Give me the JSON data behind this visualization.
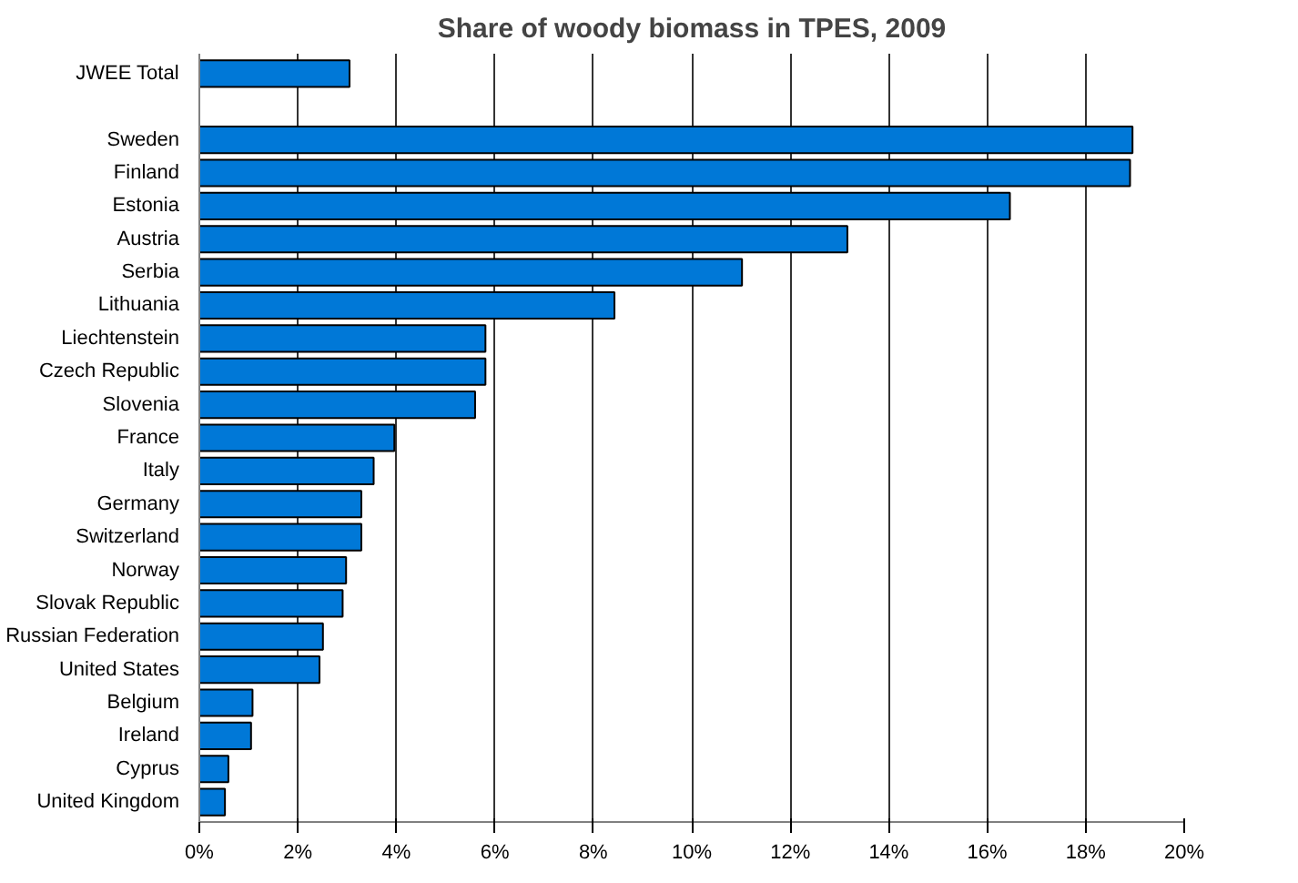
{
  "chart_data": {
    "type": "bar",
    "orientation": "horizontal",
    "title": "Share of woody biomass in TPES, 2009",
    "categories": [
      "JWEE Total",
      null,
      "Sweden",
      "Finland",
      "Estonia",
      "Austria",
      "Serbia",
      "Lithuania",
      "Liechtenstein",
      "Czech Republic",
      "Slovenia",
      "France",
      "Italy",
      "Germany",
      "Switzerland",
      "Norway",
      "Slovak Republic",
      "Russian Federation",
      "United States",
      "Belgium",
      "Ireland",
      "Cyprus",
      "United Kingdom"
    ],
    "values": [
      3.05,
      null,
      18.95,
      18.9,
      16.46,
      13.16,
      11.02,
      8.43,
      5.81,
      5.81,
      5.6,
      3.96,
      3.54,
      3.29,
      3.29,
      2.98,
      2.91,
      2.51,
      2.44,
      1.08,
      1.05,
      0.59,
      0.52
    ],
    "color": "#0078d7",
    "xlim": [
      0,
      20
    ],
    "xticks": [
      {
        "value": 0,
        "label": "0%"
      },
      {
        "value": 2,
        "label": "2%"
      },
      {
        "value": 4,
        "label": "4%"
      },
      {
        "value": 6,
        "label": "6%"
      },
      {
        "value": 8,
        "label": "8%"
      },
      {
        "value": 10,
        "label": "10%"
      },
      {
        "value": 12,
        "label": "12%"
      },
      {
        "value": 14,
        "label": "14%"
      },
      {
        "value": 16,
        "label": "16%"
      },
      {
        "value": 18,
        "label": "18%"
      },
      {
        "value": 20,
        "label": "20%"
      }
    ],
    "grid": "x"
  }
}
